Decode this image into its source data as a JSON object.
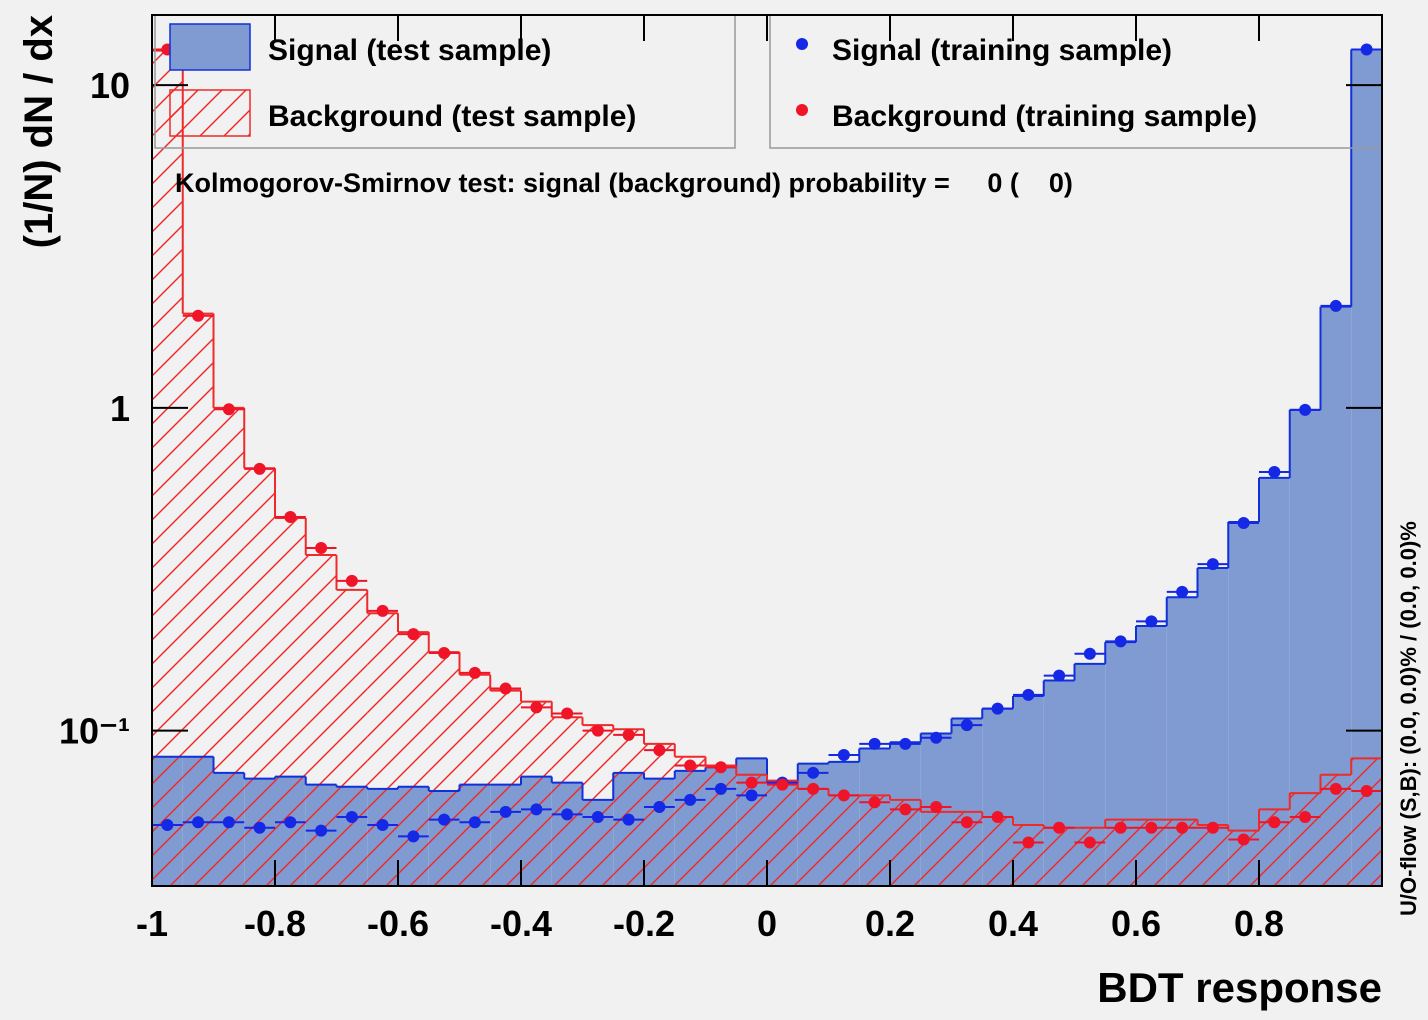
{
  "chart_data": {
    "type": "histogram",
    "x_label": "BDT response",
    "y_label": "(1/N) dN / dx",
    "annotation": "Kolmogorov-Smirnov test: signal (background) probability =     0 (    0)",
    "side_note": "U/O-flow (S,B): (0.0, 0.0)% / (0.0, 0.0)%",
    "log_y": true,
    "xlim": [
      -1,
      1
    ],
    "ylim": [
      0.033,
      16.5
    ],
    "xticks": [
      -1,
      -0.8,
      -0.6,
      -0.4,
      -0.2,
      0,
      0.2,
      0.4,
      0.6,
      0.8
    ],
    "yticks": [
      {
        "value": 0.1,
        "label": "10⁻¹"
      },
      1,
      10
    ],
    "bins": [
      -1,
      -0.95,
      -0.9,
      -0.85,
      -0.8,
      -0.75,
      -0.7,
      -0.65,
      -0.6,
      -0.55,
      -0.5,
      -0.45,
      -0.4,
      -0.35,
      -0.3,
      -0.25,
      -0.2,
      -0.15,
      -0.1,
      -0.05,
      0,
      0.05,
      0.1,
      0.15,
      0.2,
      0.25,
      0.3,
      0.35,
      0.4,
      0.45,
      0.5,
      0.55,
      0.6,
      0.65,
      0.7,
      0.75,
      0.8,
      0.85,
      0.9,
      0.95,
      1
    ],
    "series": [
      {
        "name": "Signal (test sample)",
        "style": "filled",
        "color": "#7f9bd2",
        "edge_color": "#1030d8",
        "values": [
          0.083,
          0.083,
          0.074,
          0.071,
          0.072,
          0.068,
          0.067,
          0.066,
          0.067,
          0.065,
          0.068,
          0.068,
          0.072,
          0.069,
          0.061,
          0.074,
          0.071,
          0.075,
          0.077,
          0.082,
          0.069,
          0.079,
          0.08,
          0.088,
          0.092,
          0.098,
          0.109,
          0.117,
          0.128,
          0.143,
          0.161,
          0.188,
          0.211,
          0.259,
          0.319,
          0.443,
          0.607,
          0.986,
          2.06,
          12.9
        ]
      },
      {
        "name": "Background (test sample)",
        "style": "hatched",
        "color": "#ee2a2a",
        "values": [
          12.8,
          1.96,
          1.0,
          0.65,
          0.456,
          0.35,
          0.273,
          0.231,
          0.202,
          0.175,
          0.149,
          0.133,
          0.123,
          0.11,
          0.104,
          0.101,
          0.091,
          0.083,
          0.078,
          0.073,
          0.07,
          0.066,
          0.063,
          0.063,
          0.061,
          0.056,
          0.056,
          0.054,
          0.051,
          0.05,
          0.05,
          0.053,
          0.053,
          0.053,
          0.051,
          0.049,
          0.057,
          0.064,
          0.073,
          0.082
        ]
      },
      {
        "name": "Signal (training sample)",
        "style": "points",
        "color": "#1428e6",
        "values": [
          0.051,
          0.052,
          0.052,
          0.05,
          0.052,
          0.049,
          0.054,
          0.051,
          0.047,
          0.053,
          0.052,
          0.056,
          0.057,
          0.055,
          0.054,
          0.053,
          0.058,
          0.061,
          0.066,
          0.063,
          0.069,
          0.074,
          0.084,
          0.091,
          0.091,
          0.095,
          0.104,
          0.117,
          0.129,
          0.148,
          0.173,
          0.189,
          0.218,
          0.269,
          0.328,
          0.44,
          0.633,
          0.986,
          2.07,
          12.9
        ]
      },
      {
        "name": "Background (training sample)",
        "style": "points",
        "color": "#f01428",
        "values": [
          12.9,
          1.93,
          0.99,
          0.647,
          0.459,
          0.368,
          0.291,
          0.235,
          0.199,
          0.174,
          0.151,
          0.135,
          0.118,
          0.113,
          0.1,
          0.097,
          0.087,
          0.078,
          0.077,
          0.069,
          0.068,
          0.066,
          0.063,
          0.06,
          0.057,
          0.058,
          0.052,
          0.054,
          0.045,
          0.05,
          0.045,
          0.05,
          0.05,
          0.05,
          0.05,
          0.046,
          0.052,
          0.054,
          0.066,
          0.065
        ]
      }
    ]
  }
}
